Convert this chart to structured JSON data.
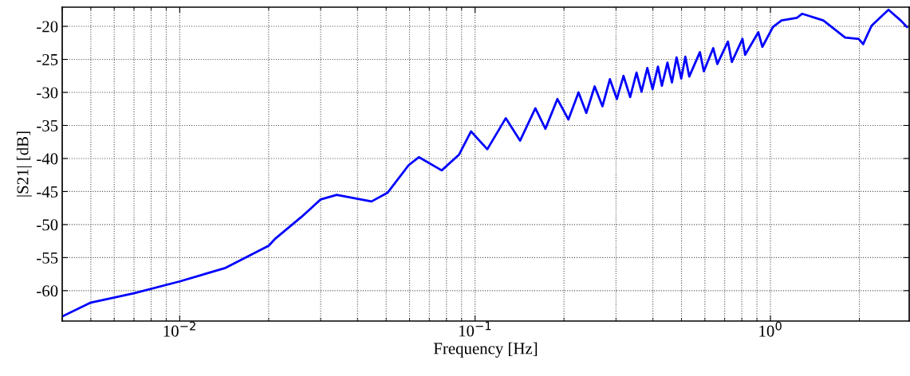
{
  "chart_data": {
    "type": "line",
    "xlabel": "Frequency [Hz]",
    "ylabel": "|S21| [dB]",
    "log": "x",
    "grid": true,
    "legend": false,
    "marker": "none",
    "line_style": "solid",
    "xlim": [
      0.004,
      2.95
    ],
    "ylim": [
      -64.6,
      -17.1
    ],
    "xticks": [
      {
        "value": 0.01,
        "label": "10$^{−2}$"
      },
      {
        "value": 0.1,
        "label": "10$^{−1}$"
      },
      {
        "value": 1,
        "label": "10$^{0}$"
      }
    ],
    "yticks": [
      -60,
      -55,
      -50,
      -45,
      -40,
      -35,
      -30,
      -25,
      -20
    ],
    "series": [
      {
        "color": "#0000ff",
        "x": [
          0.004,
          0.005,
          0.007,
          0.01,
          0.0142,
          0.02,
          0.0211,
          0.0259,
          0.03,
          0.034,
          0.0446,
          0.0505,
          0.0596,
          0.0645,
          0.0771,
          0.0883,
          0.0969,
          0.11,
          0.127,
          0.142,
          0.16,
          0.173,
          0.19,
          0.207,
          0.224,
          0.238,
          0.254,
          0.27,
          0.286,
          0.302,
          0.318,
          0.335,
          0.352,
          0.366,
          0.383,
          0.399,
          0.416,
          0.429,
          0.448,
          0.464,
          0.481,
          0.499,
          0.515,
          0.531,
          0.577,
          0.595,
          0.64,
          0.661,
          0.718,
          0.74,
          0.804,
          0.821,
          0.91,
          0.939,
          1.02,
          1.09,
          1.23,
          1.28,
          1.51,
          1.79,
          1.99,
          2.06,
          2.2,
          2.51,
          2.76,
          2.9
        ],
        "values": [
          -63.9,
          -61.8,
          -60.4,
          -58.6,
          -56.6,
          -53.2,
          -52.1,
          -48.8,
          -46.2,
          -45.5,
          -46.5,
          -45.2,
          -41.0,
          -39.8,
          -41.8,
          -39.4,
          -35.9,
          -38.6,
          -33.9,
          -37.3,
          -32.4,
          -35.5,
          -31.0,
          -34.1,
          -30.0,
          -33.1,
          -29.1,
          -32.1,
          -28.0,
          -31.0,
          -27.5,
          -30.7,
          -27.0,
          -29.9,
          -26.3,
          -29.5,
          -26.1,
          -29.0,
          -25.5,
          -28.5,
          -24.7,
          -27.9,
          -24.6,
          -27.6,
          -23.9,
          -26.8,
          -23.3,
          -25.7,
          -22.3,
          -25.4,
          -21.9,
          -24.3,
          -20.9,
          -23.1,
          -20.1,
          -19.1,
          -18.7,
          -18.1,
          -19.1,
          -21.7,
          -21.9,
          -22.7,
          -19.9,
          -17.5,
          -19.1,
          -20.1
        ]
      }
    ]
  }
}
